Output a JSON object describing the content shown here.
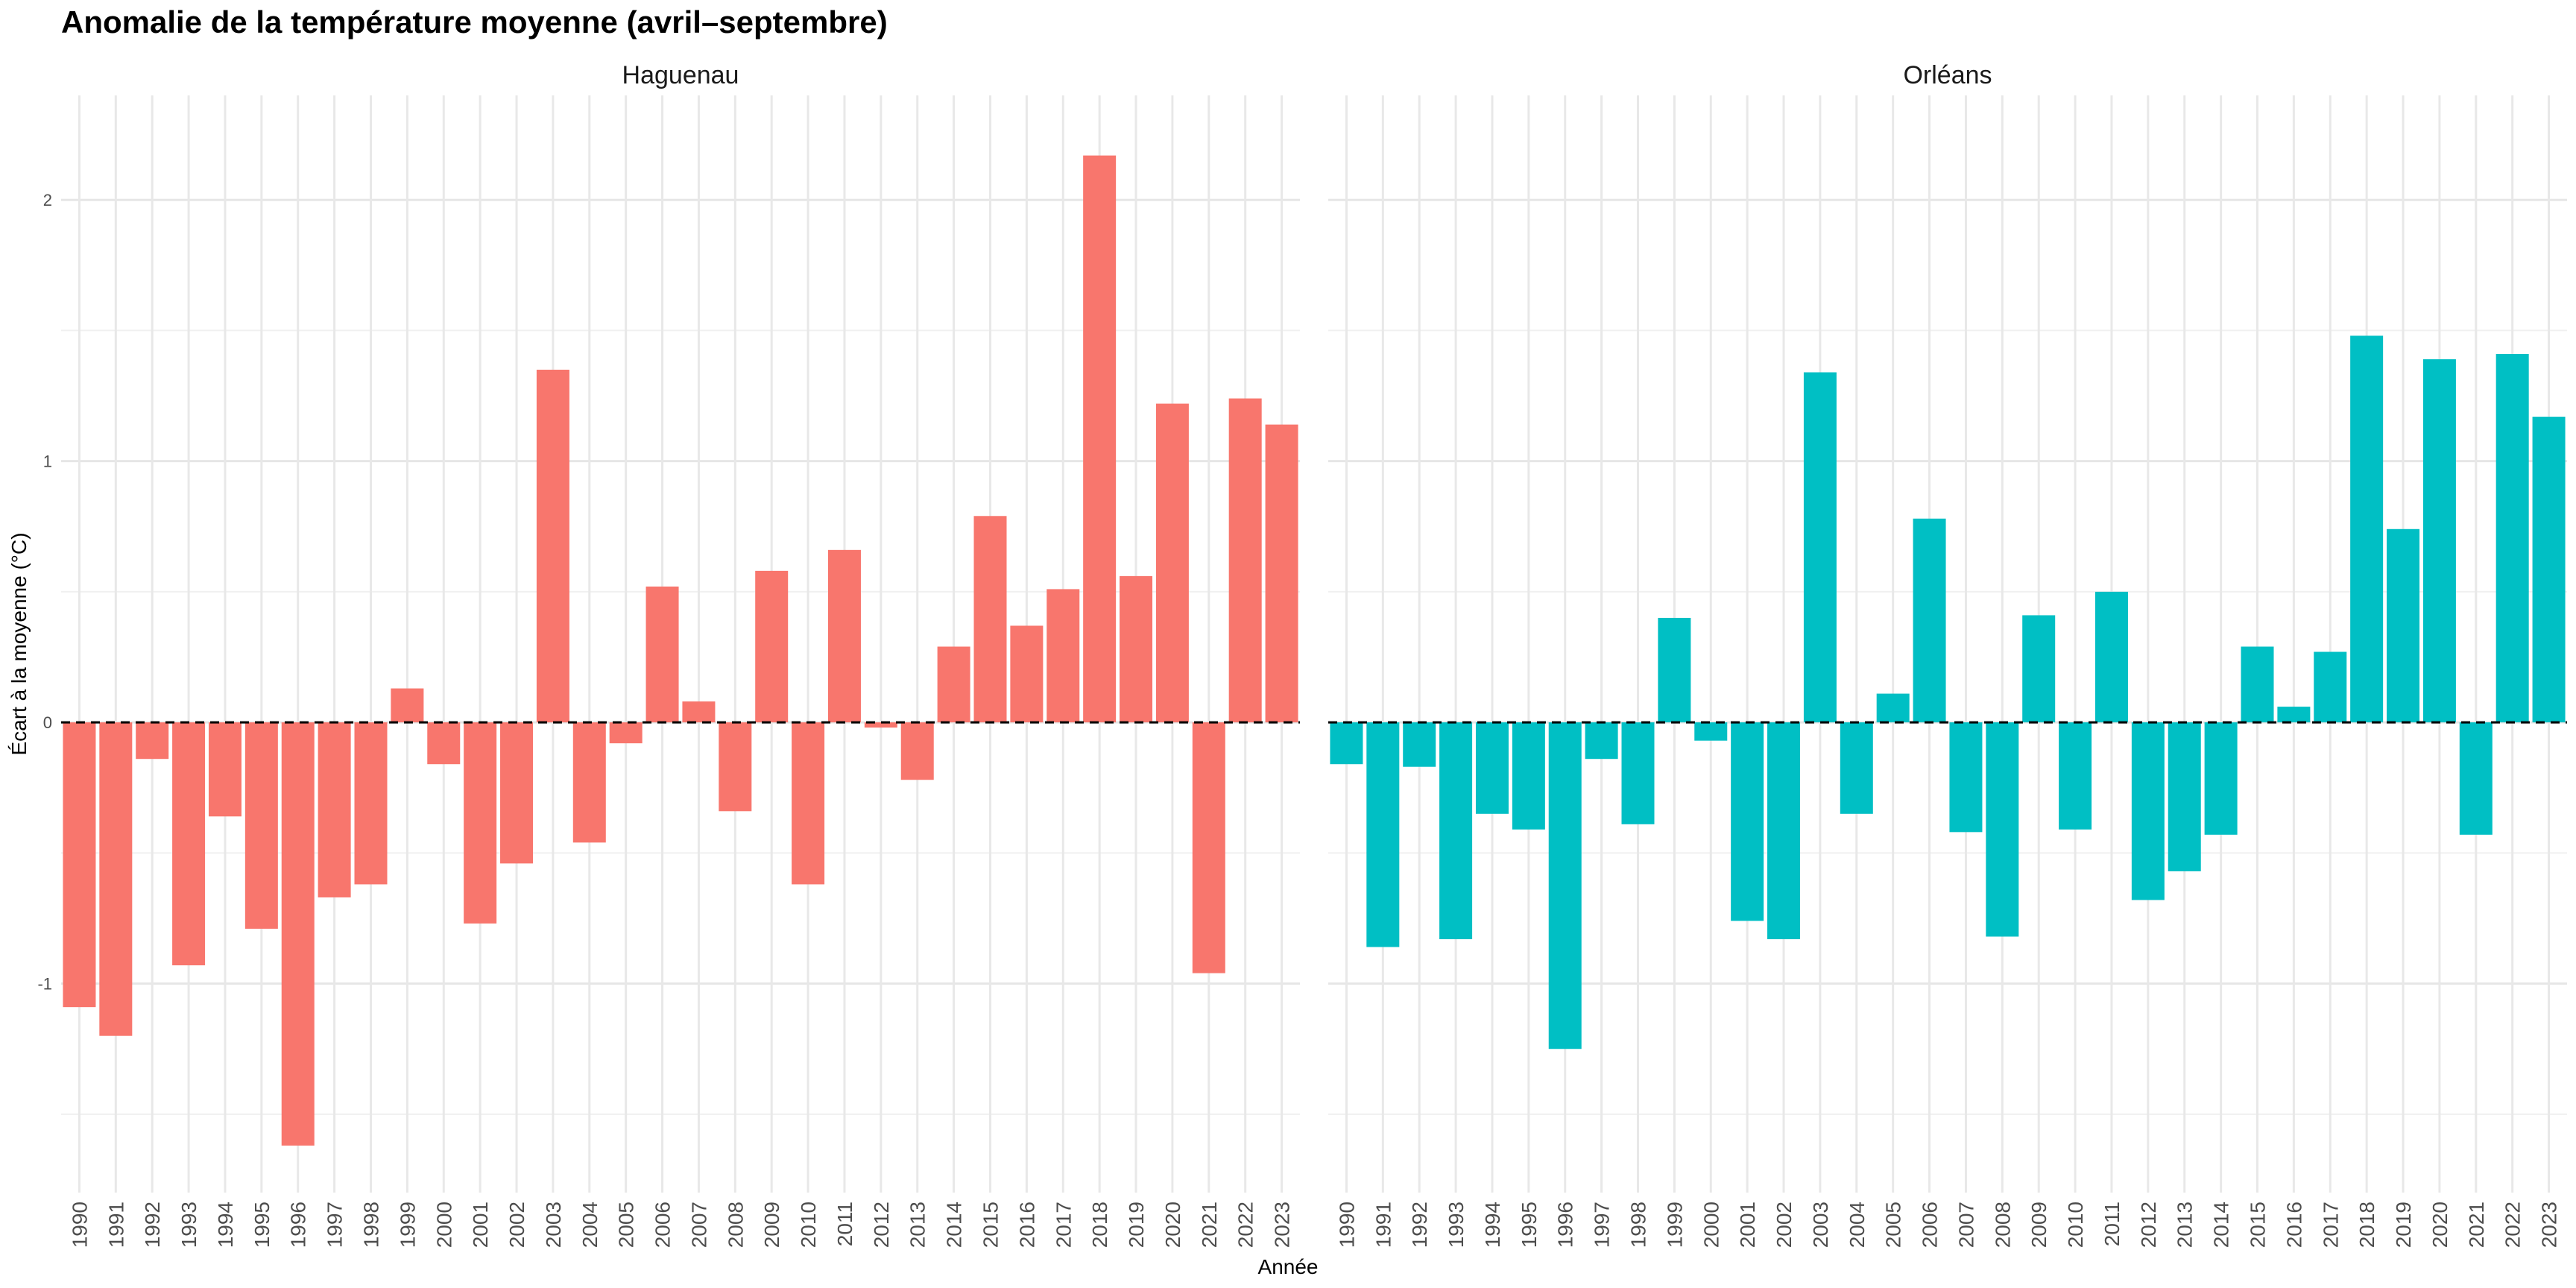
{
  "chart_data": {
    "type": "bar",
    "title": "Anomalie de la température moyenne (avril–septembre)",
    "xlabel": "Année",
    "ylabel": "Écart à la moyenne (°C)",
    "ylim": [
      -1.8,
      2.4
    ],
    "yticks": [
      -1,
      0,
      1,
      2
    ],
    "grid": true,
    "reference_line": {
      "y": 0,
      "style": "dashed"
    },
    "categories": [
      "1990",
      "1991",
      "1992",
      "1993",
      "1994",
      "1995",
      "1996",
      "1997",
      "1998",
      "1999",
      "2000",
      "2001",
      "2002",
      "2003",
      "2004",
      "2005",
      "2006",
      "2007",
      "2008",
      "2009",
      "2010",
      "2011",
      "2012",
      "2013",
      "2014",
      "2015",
      "2016",
      "2017",
      "2018",
      "2019",
      "2020",
      "2021",
      "2022",
      "2023"
    ],
    "panels": [
      {
        "name": "Haguenau",
        "color": "#F8766D",
        "values": [
          -1.09,
          -1.2,
          -0.14,
          -0.93,
          -0.36,
          -0.79,
          -1.62,
          -0.67,
          -0.62,
          0.13,
          -0.16,
          -0.77,
          -0.54,
          1.35,
          -0.46,
          -0.08,
          0.52,
          0.08,
          -0.34,
          0.58,
          -0.62,
          0.66,
          -0.02,
          -0.22,
          0.29,
          0.79,
          0.37,
          0.51,
          2.17,
          0.56,
          1.22,
          -0.96,
          1.24,
          1.14
        ]
      },
      {
        "name": "Orléans",
        "color": "#00BFC4",
        "values": [
          -0.16,
          -0.86,
          -0.17,
          -0.83,
          -0.35,
          -0.41,
          -1.25,
          -0.14,
          -0.39,
          0.4,
          -0.07,
          -0.76,
          -0.83,
          1.34,
          -0.35,
          0.11,
          0.78,
          -0.42,
          -0.82,
          0.41,
          -0.41,
          0.5,
          -0.68,
          -0.57,
          -0.43,
          0.29,
          0.06,
          0.27,
          1.48,
          0.74,
          1.39,
          -0.43,
          1.41,
          1.17
        ]
      }
    ]
  }
}
